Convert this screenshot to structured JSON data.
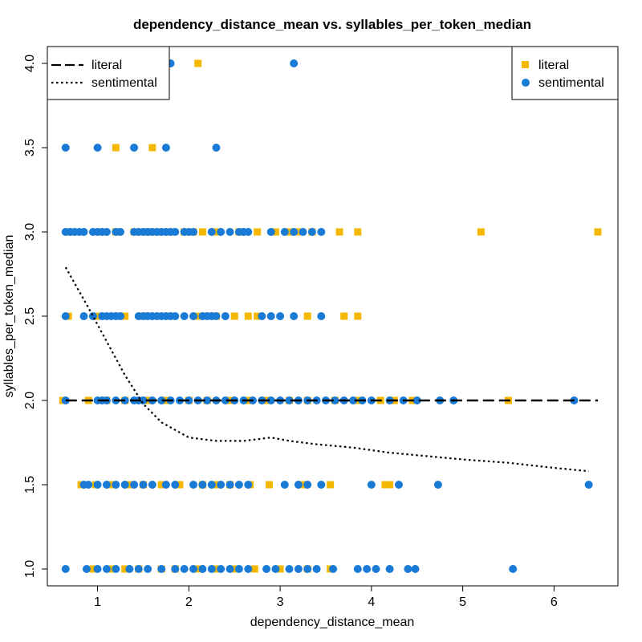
{
  "chart_data": {
    "type": "scatter",
    "title": "dependency_distance_mean vs. syllables_per_token_median",
    "xlabel": "dependency_distance_mean",
    "ylabel": "syllables_per_token_median",
    "xlim": [
      0.45,
      6.7
    ],
    "ylim": [
      0.9,
      4.1
    ],
    "xticks": [
      1,
      2,
      3,
      4,
      5,
      6
    ],
    "yticks": [
      1.0,
      1.5,
      2.0,
      2.5,
      3.0,
      3.5,
      4.0
    ],
    "xtick_labels": [
      "1",
      "2",
      "3",
      "4",
      "5",
      "6"
    ],
    "ytick_labels": [
      "1.0",
      "1.5",
      "2.0",
      "2.5",
      "3.0",
      "3.5",
      "4.0"
    ],
    "grid": false,
    "series": [
      {
        "name": "literal",
        "marker": "square",
        "color": "#F5B800",
        "x": [
          2.1,
          1.2,
          1.6,
          0.7,
          1.05,
          1.2,
          1.4,
          1.55,
          1.65,
          1.8,
          1.95,
          2.05,
          2.15,
          2.3,
          2.55,
          2.75,
          2.95,
          3.1,
          3.2,
          3.35,
          3.65,
          3.85,
          5.2,
          6.48,
          0.68,
          1.0,
          1.3,
          1.5,
          1.8,
          2.1,
          2.3,
          2.5,
          2.65,
          2.75,
          3.3,
          3.7,
          3.85,
          0.62,
          0.9,
          1.1,
          1.3,
          1.55,
          1.75,
          2.0,
          2.2,
          2.45,
          2.65,
          2.85,
          3.1,
          3.3,
          3.6,
          3.85,
          4.1,
          4.25,
          4.45,
          5.5,
          0.82,
          0.98,
          1.15,
          1.35,
          1.5,
          1.7,
          1.9,
          2.15,
          2.3,
          2.45,
          2.67,
          2.88,
          3.25,
          3.55,
          4.15,
          4.2,
          0.95,
          1.15,
          1.3,
          1.45,
          1.7,
          1.85,
          2.1,
          2.3,
          2.5,
          2.72,
          3.0,
          3.3,
          3.55
        ],
        "y": [
          4.0,
          3.5,
          3.5,
          3.0,
          3.0,
          3.0,
          3.0,
          3.0,
          3.0,
          3.0,
          3.0,
          3.0,
          3.0,
          3.0,
          3.0,
          3.0,
          3.0,
          3.0,
          3.0,
          3.0,
          3.0,
          3.0,
          3.0,
          3.0,
          2.5,
          2.5,
          2.5,
          2.5,
          2.5,
          2.5,
          2.5,
          2.5,
          2.5,
          2.5,
          2.5,
          2.5,
          2.5,
          2.0,
          2.0,
          2.0,
          2.0,
          2.0,
          2.0,
          2.0,
          2.0,
          2.0,
          2.0,
          2.0,
          2.0,
          2.0,
          2.0,
          2.0,
          2.0,
          2.0,
          2.0,
          2.0,
          1.5,
          1.5,
          1.5,
          1.5,
          1.5,
          1.5,
          1.5,
          1.5,
          1.5,
          1.5,
          1.5,
          1.5,
          1.5,
          1.5,
          1.5,
          1.5,
          1.0,
          1.0,
          1.0,
          1.0,
          1.0,
          1.0,
          1.0,
          1.0,
          1.0,
          1.0,
          1.0,
          1.0,
          1.0
        ]
      },
      {
        "name": "sentimental",
        "marker": "circle",
        "color": "#1A7BD6",
        "x": [
          1.8,
          3.15,
          0.65,
          1.0,
          1.4,
          1.75,
          2.3,
          0.65,
          0.7,
          0.75,
          0.8,
          0.85,
          0.95,
          1.0,
          1.05,
          1.1,
          1.2,
          1.25,
          1.4,
          1.45,
          1.5,
          1.55,
          1.6,
          1.65,
          1.7,
          1.75,
          1.8,
          1.85,
          1.95,
          2.0,
          2.05,
          2.25,
          2.35,
          2.45,
          2.55,
          2.6,
          2.65,
          2.9,
          3.05,
          3.15,
          3.25,
          3.35,
          3.45,
          0.65,
          0.85,
          0.95,
          1.05,
          1.1,
          1.15,
          1.2,
          1.25,
          1.45,
          1.5,
          1.55,
          1.6,
          1.65,
          1.7,
          1.75,
          1.8,
          1.85,
          1.95,
          2.05,
          2.15,
          2.2,
          2.25,
          2.3,
          2.4,
          2.8,
          2.9,
          3.0,
          3.15,
          3.45,
          0.65,
          1.0,
          1.05,
          1.1,
          1.2,
          1.3,
          1.4,
          1.45,
          1.5,
          1.6,
          1.7,
          1.8,
          1.9,
          2.0,
          2.1,
          2.2,
          2.3,
          2.4,
          2.5,
          2.6,
          2.7,
          2.8,
          2.9,
          3.0,
          3.1,
          3.2,
          3.3,
          3.4,
          3.5,
          3.6,
          3.7,
          3.8,
          3.9,
          4.0,
          4.2,
          4.35,
          4.5,
          4.75,
          4.9,
          6.22,
          0.85,
          0.9,
          1.0,
          1.1,
          1.2,
          1.3,
          1.4,
          1.5,
          1.6,
          1.75,
          1.85,
          2.05,
          2.15,
          2.25,
          2.35,
          2.45,
          2.55,
          2.65,
          3.05,
          3.2,
          3.3,
          3.45,
          4.0,
          4.3,
          4.73,
          6.38,
          0.65,
          0.88,
          1.0,
          1.1,
          1.2,
          1.35,
          1.45,
          1.55,
          1.7,
          1.85,
          1.95,
          2.05,
          2.15,
          2.25,
          2.35,
          2.45,
          2.55,
          2.65,
          2.85,
          2.95,
          3.1,
          3.2,
          3.3,
          3.4,
          3.58,
          3.85,
          3.95,
          4.05,
          4.2,
          4.4,
          4.48,
          5.55
        ],
        "y": [
          4.0,
          4.0,
          3.5,
          3.5,
          3.5,
          3.5,
          3.5,
          3.0,
          3.0,
          3.0,
          3.0,
          3.0,
          3.0,
          3.0,
          3.0,
          3.0,
          3.0,
          3.0,
          3.0,
          3.0,
          3.0,
          3.0,
          3.0,
          3.0,
          3.0,
          3.0,
          3.0,
          3.0,
          3.0,
          3.0,
          3.0,
          3.0,
          3.0,
          3.0,
          3.0,
          3.0,
          3.0,
          3.0,
          3.0,
          3.0,
          3.0,
          3.0,
          3.0,
          2.5,
          2.5,
          2.5,
          2.5,
          2.5,
          2.5,
          2.5,
          2.5,
          2.5,
          2.5,
          2.5,
          2.5,
          2.5,
          2.5,
          2.5,
          2.5,
          2.5,
          2.5,
          2.5,
          2.5,
          2.5,
          2.5,
          2.5,
          2.5,
          2.5,
          2.5,
          2.5,
          2.5,
          2.5,
          2.0,
          2.0,
          2.0,
          2.0,
          2.0,
          2.0,
          2.0,
          2.0,
          2.0,
          2.0,
          2.0,
          2.0,
          2.0,
          2.0,
          2.0,
          2.0,
          2.0,
          2.0,
          2.0,
          2.0,
          2.0,
          2.0,
          2.0,
          2.0,
          2.0,
          2.0,
          2.0,
          2.0,
          2.0,
          2.0,
          2.0,
          2.0,
          2.0,
          2.0,
          2.0,
          2.0,
          2.0,
          2.0,
          2.0,
          2.0,
          1.5,
          1.5,
          1.5,
          1.5,
          1.5,
          1.5,
          1.5,
          1.5,
          1.5,
          1.5,
          1.5,
          1.5,
          1.5,
          1.5,
          1.5,
          1.5,
          1.5,
          1.5,
          1.5,
          1.5,
          1.5,
          1.5,
          1.5,
          1.5,
          1.5,
          1.5,
          1.0,
          1.0,
          1.0,
          1.0,
          1.0,
          1.0,
          1.0,
          1.0,
          1.0,
          1.0,
          1.0,
          1.0,
          1.0,
          1.0,
          1.0,
          1.0,
          1.0,
          1.0,
          1.0,
          1.0,
          1.0,
          1.0,
          1.0,
          1.0,
          1.0,
          1.0,
          1.0,
          1.0,
          1.0,
          1.0,
          1.0,
          1.0
        ]
      }
    ],
    "lines": [
      {
        "name": "literal",
        "style": "dashed",
        "color": "#000000",
        "x": [
          0.65,
          6.48
        ],
        "y": [
          2.0,
          2.0
        ]
      },
      {
        "name": "sentimental",
        "style": "dotted",
        "color": "#000000",
        "x": [
          0.65,
          0.9,
          1.1,
          1.3,
          1.5,
          1.7,
          2.0,
          2.3,
          2.6,
          2.9,
          3.1,
          3.4,
          3.8,
          4.2,
          4.6,
          5.0,
          5.5,
          6.0,
          6.38
        ],
        "y": [
          2.79,
          2.55,
          2.35,
          2.15,
          1.98,
          1.87,
          1.78,
          1.76,
          1.76,
          1.78,
          1.76,
          1.74,
          1.72,
          1.69,
          1.67,
          1.65,
          1.63,
          1.6,
          1.58
        ]
      }
    ],
    "legends": [
      {
        "position": "top-left",
        "entries": [
          {
            "label": "literal",
            "style": "dashed"
          },
          {
            "label": "sentimental",
            "style": "dotted"
          }
        ]
      },
      {
        "position": "top-right",
        "entries": [
          {
            "label": "literal",
            "marker": "square",
            "color": "#F5B800"
          },
          {
            "label": "sentimental",
            "marker": "circle",
            "color": "#1A7BD6"
          }
        ]
      }
    ]
  }
}
